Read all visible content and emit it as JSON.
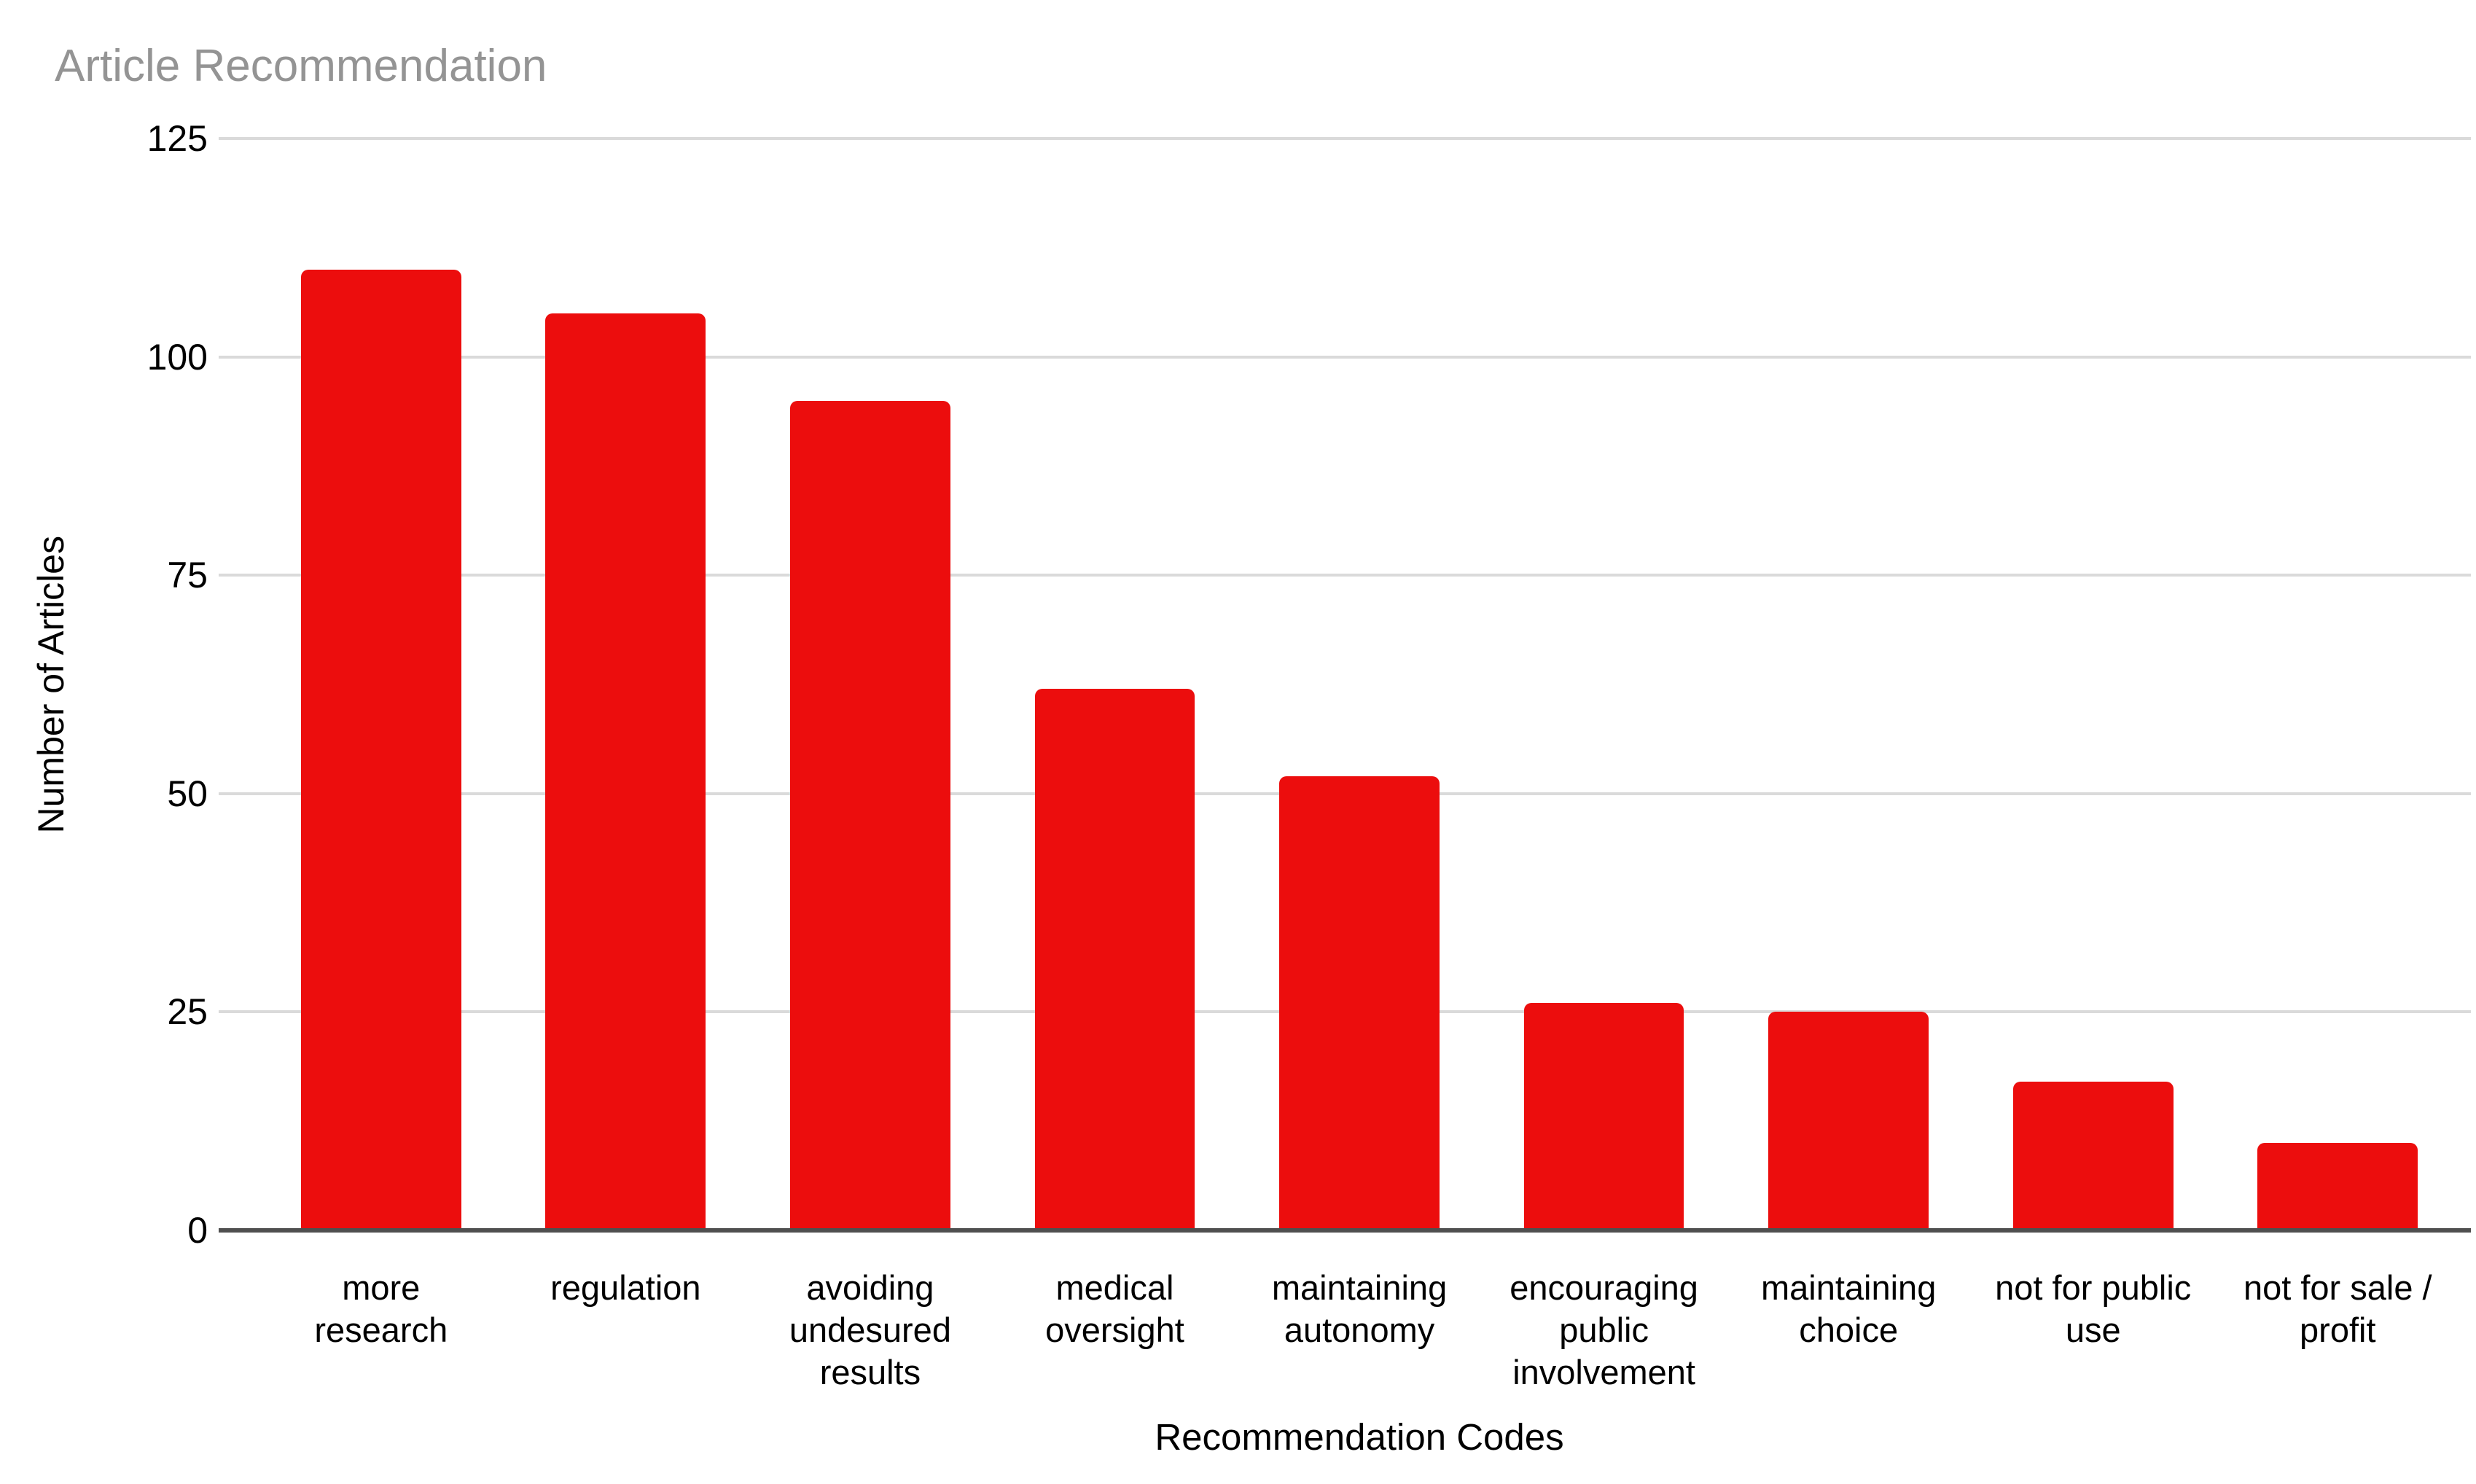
{
  "page": {
    "background": "#ffffff"
  },
  "chart_data": {
    "type": "bar",
    "title": "Article Recommendation",
    "xlabel": "Recommendation Codes",
    "ylabel": "Number of Articles",
    "categories": [
      "more research",
      "regulation",
      "avoiding undesured results",
      "medical oversight",
      "maintaining autonomy",
      "encouraging public involvement",
      "maintaining choice",
      "not for public use",
      "not for sale / profit"
    ],
    "category_labels_wrapped": [
      "more\nresearch",
      "regulation",
      "avoiding\nundesured\nresults",
      "medical\noversight",
      "maintaining\nautonomy",
      "encouraging\npublic\ninvolvement",
      "maintaining\nchoice",
      "not for public\nuse",
      "not for sale /\nprofit"
    ],
    "values": [
      110,
      105,
      95,
      62,
      52,
      26,
      25,
      17,
      10
    ],
    "yticks": [
      125,
      100,
      75,
      50,
      25,
      0
    ],
    "ylim": [
      0,
      125
    ],
    "grid": true,
    "legend": "none",
    "colors": {
      "bar": "#ec0d0d",
      "title": "#949494",
      "gridline": "#dadada",
      "axis_line": "#4f4f4f",
      "text": "#000000",
      "background": "#ffffff"
    }
  }
}
